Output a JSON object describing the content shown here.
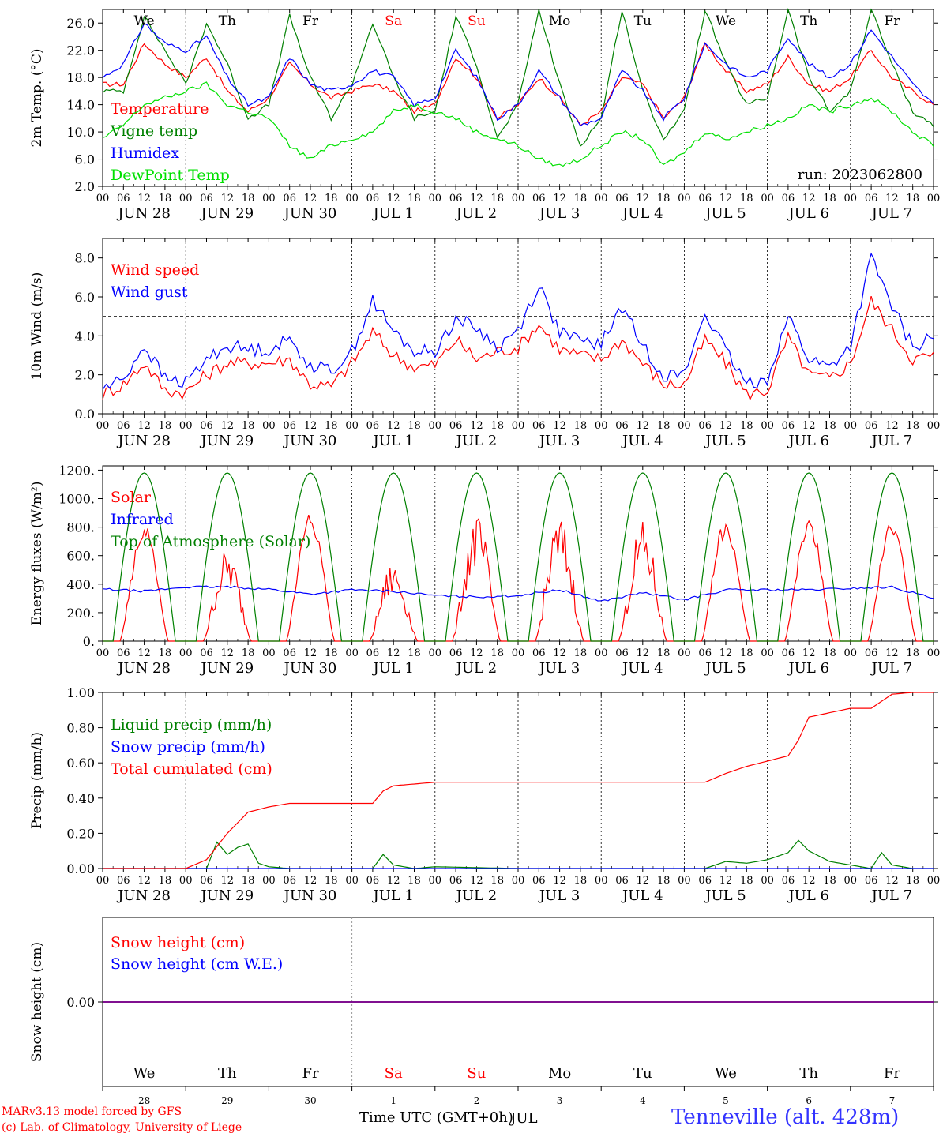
{
  "run_label": "run: 2023062800",
  "x_axis": {
    "hour_ticks": [
      "00",
      "06",
      "12",
      "18"
    ],
    "date_labels": [
      "JUN 28",
      "JUN 29",
      "JUN 30",
      "JUL  1",
      "JUL  2",
      "JUL  3",
      "JUL  4",
      "JUL  5",
      "JUL  6",
      "JUL  7"
    ],
    "day_labels": [
      "We",
      "Th",
      "Fr",
      "Sa",
      "Su",
      "Mo",
      "Tu",
      "We",
      "Th",
      "Fr"
    ],
    "weekend_days": [
      3,
      4
    ],
    "day_numbers": [
      "28",
      "29",
      "30",
      "1",
      "2",
      "3",
      "4",
      "5",
      "6",
      "7"
    ],
    "bottom_month": "JUL",
    "title": "Time UTC (GMT+0h)"
  },
  "footer": {
    "credit_line1": "MARv3.13 model forced by GFS",
    "credit_line2": "(c) Lab. of Climatology, University of Liege",
    "station": "Tenneville (alt. 428m)"
  },
  "colors": {
    "red": "#ff0000",
    "green": "#008000",
    "blue": "#0000ff",
    "light_green": "#00e000",
    "purple": "#800080",
    "weekend": "#ff0000"
  },
  "chart_data": [
    {
      "type": "line",
      "ylabel": "2m Temp. (°C)",
      "ylim": [
        2.0,
        28.0
      ],
      "yticks": [
        "2.0",
        "6.0",
        "10.0",
        "14.0",
        "18.0",
        "22.0",
        "26.0"
      ],
      "grid": "vertical dotted at day boundaries",
      "legend_position": "left",
      "series": [
        {
          "name": "Temperature",
          "color": "#ff0000",
          "x_hours": [
            0,
            6,
            12,
            18,
            24,
            30,
            36,
            42,
            48,
            54,
            60,
            66,
            72,
            78,
            84,
            90,
            96,
            102,
            108,
            114,
            120,
            126,
            132,
            138,
            144,
            150,
            156,
            162,
            168,
            174,
            180,
            186,
            192,
            198,
            204,
            210,
            216,
            222,
            228,
            234,
            240
          ],
          "values": [
            17,
            17,
            23,
            20,
            18,
            21,
            16,
            13,
            15,
            20,
            17,
            15,
            16,
            17,
            16,
            13,
            14,
            21,
            18,
            12,
            14,
            18,
            15,
            11,
            13,
            18,
            17,
            12,
            15,
            23,
            19,
            16,
            17,
            21,
            17,
            16,
            18,
            22,
            18,
            16,
            14
          ]
        },
        {
          "name": "Vigne temp",
          "color": "#008000",
          "x_hours": [
            0,
            6,
            12,
            18,
            24,
            30,
            36,
            42,
            48,
            54,
            60,
            66,
            72,
            78,
            84,
            90,
            96,
            102,
            108,
            114,
            120,
            126,
            132,
            138,
            144,
            150,
            156,
            162,
            168,
            174,
            180,
            186,
            192,
            198,
            204,
            210,
            216,
            222,
            228,
            234,
            240
          ],
          "values": [
            16,
            16,
            27,
            22,
            17,
            26,
            20,
            12,
            14,
            27,
            18,
            12,
            17,
            26,
            18,
            12,
            13,
            27,
            20,
            9,
            14,
            28,
            17,
            8,
            12,
            28,
            16,
            9,
            13,
            28,
            20,
            14,
            15,
            28,
            18,
            13,
            16,
            28,
            20,
            13,
            11
          ]
        },
        {
          "name": "Humidex",
          "color": "#0000ff",
          "x_hours": [
            0,
            6,
            12,
            18,
            24,
            30,
            36,
            42,
            48,
            54,
            60,
            66,
            72,
            78,
            84,
            90,
            96,
            102,
            108,
            114,
            120,
            126,
            132,
            138,
            144,
            150,
            156,
            162,
            168,
            174,
            180,
            186,
            192,
            198,
            204,
            210,
            216,
            222,
            228,
            234,
            240
          ],
          "values": [
            18,
            20,
            26,
            23,
            22,
            24,
            18,
            14,
            15,
            21,
            17,
            16,
            17,
            19,
            18,
            14,
            15,
            22,
            18,
            12,
            14,
            19,
            15,
            11,
            12,
            19,
            16,
            12,
            15,
            23,
            20,
            18,
            19,
            24,
            20,
            18,
            20,
            25,
            21,
            17,
            14
          ]
        },
        {
          "name": "DewPoint Temp",
          "color": "#00e000",
          "x_hours": [
            0,
            6,
            12,
            18,
            24,
            30,
            36,
            42,
            48,
            54,
            60,
            66,
            72,
            78,
            84,
            90,
            96,
            102,
            108,
            114,
            120,
            126,
            132,
            138,
            144,
            150,
            156,
            162,
            168,
            174,
            180,
            186,
            192,
            198,
            204,
            210,
            216,
            222,
            228,
            234,
            240
          ],
          "values": [
            9,
            11,
            14,
            15,
            16,
            17,
            14,
            13,
            12,
            8,
            6,
            8,
            9,
            10,
            13,
            14,
            13,
            12,
            10,
            9,
            8,
            6,
            5,
            6,
            8,
            10,
            9,
            5,
            7,
            10,
            9,
            10,
            11,
            12,
            14,
            13,
            14,
            15,
            13,
            10,
            8
          ]
        }
      ]
    },
    {
      "type": "line",
      "ylabel": "10m Wind (m/s)",
      "ylim": [
        0.0,
        9.0
      ],
      "yticks": [
        "0.0",
        "2.0",
        "4.0",
        "6.0",
        "8.0"
      ],
      "reference_line": 5.0,
      "legend_position": "left",
      "series": [
        {
          "name": "Wind speed",
          "color": "#ff0000",
          "x_hours": [
            0,
            6,
            12,
            18,
            24,
            30,
            36,
            42,
            48,
            54,
            60,
            66,
            72,
            78,
            84,
            90,
            96,
            102,
            108,
            114,
            120,
            126,
            132,
            138,
            144,
            150,
            156,
            162,
            168,
            174,
            180,
            186,
            192,
            198,
            204,
            210,
            216,
            222,
            228,
            234,
            240
          ],
          "values": [
            1.0,
            1.5,
            2.6,
            1.2,
            1.1,
            2.0,
            2.6,
            2.6,
            2.6,
            2.8,
            1.5,
            1.4,
            2.6,
            4.2,
            3.0,
            2.4,
            2.5,
            3.8,
            2.8,
            3.2,
            3.4,
            4.6,
            3.3,
            3.0,
            2.8,
            3.8,
            2.6,
            1.5,
            1.5,
            3.8,
            2.6,
            1.0,
            1.2,
            3.9,
            2.0,
            1.8,
            2.6,
            5.8,
            4.3,
            2.8,
            3.0
          ]
        },
        {
          "name": "Wind gust",
          "color": "#0000ff",
          "x_hours": [
            0,
            6,
            12,
            18,
            24,
            30,
            36,
            42,
            48,
            54,
            60,
            66,
            72,
            78,
            84,
            90,
            96,
            102,
            108,
            114,
            120,
            126,
            132,
            138,
            144,
            150,
            156,
            162,
            168,
            174,
            180,
            186,
            192,
            198,
            204,
            210,
            216,
            222,
            228,
            234,
            240
          ],
          "values": [
            1.3,
            1.8,
            3.5,
            1.8,
            1.6,
            2.8,
            3.5,
            3.3,
            3.3,
            3.8,
            2.5,
            2.2,
            3.2,
            5.8,
            4.2,
            3.2,
            3.2,
            4.9,
            4.4,
            3.4,
            4.3,
            6.6,
            4.2,
            3.7,
            3.6,
            5.5,
            3.5,
            2.0,
            2.0,
            5.2,
            3.2,
            1.5,
            1.8,
            5.0,
            2.8,
            2.4,
            3.5,
            8.0,
            5.5,
            3.4,
            4.0
          ]
        }
      ]
    },
    {
      "type": "line",
      "ylabel": "Energy fluxes (W/m²)",
      "ylim": [
        0,
        1230
      ],
      "yticks": [
        "0.",
        "200.",
        "400.",
        "600.",
        "800.",
        "1000.",
        "1200."
      ],
      "legend_position": "left",
      "series": [
        {
          "name": "Solar",
          "color": "#ff0000",
          "daily_peak": [
            830,
            650,
            900,
            560,
            890,
            880,
            840,
            860,
            860,
            860
          ]
        },
        {
          "name": "Infrared",
          "color": "#0000ff",
          "x_hours": [
            0,
            12,
            24,
            36,
            48,
            60,
            72,
            84,
            96,
            108,
            120,
            132,
            144,
            156,
            168,
            180,
            192,
            204,
            216,
            228,
            240
          ],
          "values": [
            365,
            350,
            380,
            380,
            365,
            330,
            360,
            350,
            320,
            310,
            320,
            360,
            280,
            340,
            290,
            360,
            360,
            360,
            370,
            380,
            300
          ]
        },
        {
          "name": "Top of Atmosphere (Solar)",
          "color": "#008000",
          "daily_peak": [
            1180,
            1180,
            1180,
            1180,
            1180,
            1180,
            1180,
            1180,
            1180,
            1180
          ],
          "sunrise_hour": 3,
          "sunset_hour": 21
        }
      ]
    },
    {
      "type": "line",
      "ylabel": "Precip (mm/h)",
      "ylim": [
        0.0,
        1.0
      ],
      "yticks": [
        "0.00",
        "0.20",
        "0.40",
        "0.60",
        "0.80",
        "1.00"
      ],
      "legend_position": "left",
      "series": [
        {
          "name": "Liquid precip (mm/h)",
          "color": "#008000",
          "x_hours": [
            0,
            24,
            30,
            33,
            36,
            39,
            42,
            45,
            48,
            54,
            72,
            78,
            81,
            84,
            90,
            96,
            120,
            168,
            174,
            180,
            186,
            192,
            198,
            201,
            204,
            210,
            216,
            222,
            225,
            228,
            234,
            240
          ],
          "values": [
            0,
            0,
            0,
            0.15,
            0.08,
            0.12,
            0.14,
            0.03,
            0.01,
            0,
            0,
            0,
            0.08,
            0.02,
            0,
            0.01,
            0,
            0,
            0,
            0.04,
            0.03,
            0.05,
            0.09,
            0.16,
            0.1,
            0.04,
            0.02,
            0,
            0.09,
            0.02,
            0,
            0
          ]
        },
        {
          "name": "Snow precip (mm/h)",
          "color": "#0000ff",
          "x_hours": [
            0,
            240
          ],
          "values": [
            0,
            0
          ]
        },
        {
          "name": "Total cumulated (cm)",
          "color": "#ff0000",
          "x_hours": [
            0,
            24,
            30,
            36,
            42,
            48,
            54,
            60,
            66,
            72,
            78,
            81,
            84,
            90,
            96,
            120,
            144,
            168,
            174,
            180,
            186,
            192,
            198,
            201,
            204,
            216,
            222,
            228,
            234,
            240
          ],
          "values": [
            0,
            0,
            0.05,
            0.2,
            0.32,
            0.35,
            0.37,
            0.37,
            0.37,
            0.37,
            0.37,
            0.44,
            0.47,
            0.48,
            0.49,
            0.49,
            0.49,
            0.49,
            0.49,
            0.54,
            0.58,
            0.61,
            0.64,
            0.73,
            0.86,
            0.91,
            0.91,
            0.99,
            1.0,
            1.0
          ]
        }
      ]
    },
    {
      "type": "line",
      "ylabel": "Snow height (cm)",
      "yticks": [
        "0.00"
      ],
      "legend_position": "left",
      "series": [
        {
          "name": "Snow height (cm)",
          "color": "#ff0000",
          "x_hours": [
            0,
            240
          ],
          "values": [
            0,
            0
          ]
        },
        {
          "name": "Snow height (cm W.E.)",
          "color": "#0000ff",
          "x_hours": [
            0,
            240
          ],
          "values": [
            0,
            0
          ]
        }
      ]
    }
  ]
}
